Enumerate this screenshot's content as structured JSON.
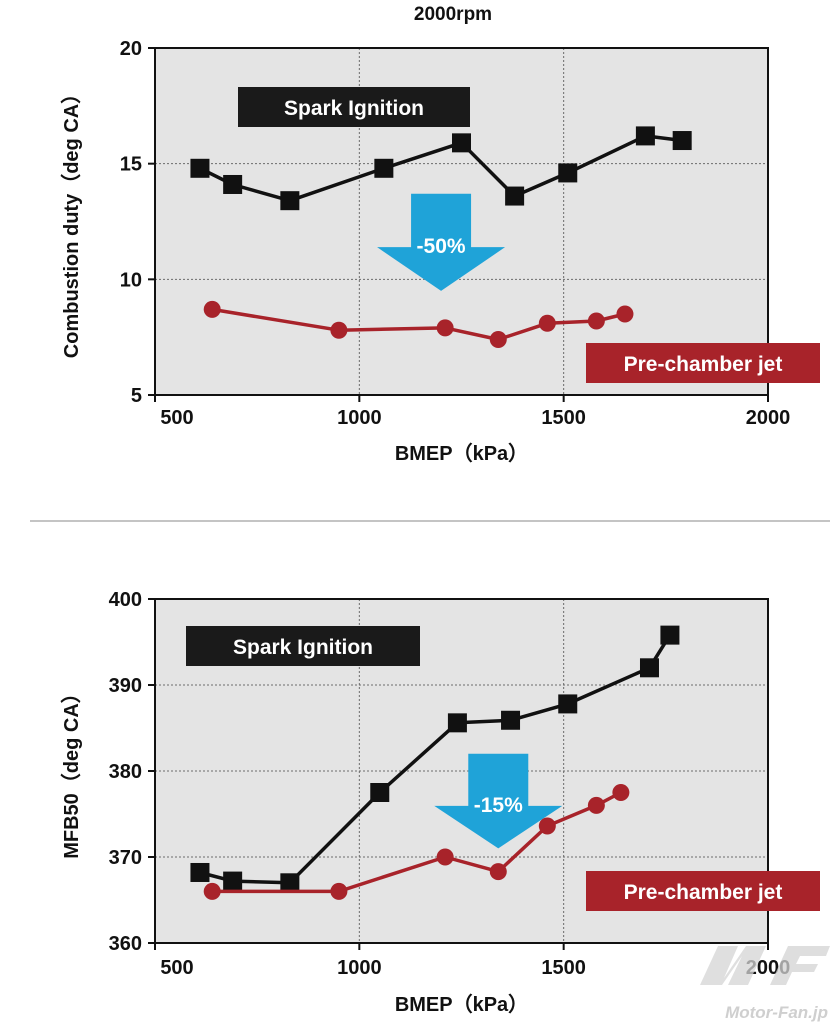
{
  "figure_title": "2000rpm",
  "watermark": {
    "logo": "MF",
    "text": "Motor-Fan.jp"
  },
  "colors": {
    "spark": "#111111",
    "prechamber": "#a8232a",
    "arrow": "#1fa3d8",
    "plot_bg": "#e4e4e4",
    "spark_box": "#1a1a1a",
    "pre_box": "#a8232a"
  },
  "chart_data": [
    {
      "type": "line",
      "title": "2000rpm",
      "xlabel": "BMEP（kPa）",
      "ylabel": "Combustion duty（deg CA）",
      "xlim": [
        500,
        2000
      ],
      "ylim": [
        5,
        20
      ],
      "xticks": [
        500,
        1000,
        1500,
        2000
      ],
      "yticks": [
        5,
        10,
        15,
        20
      ],
      "grid": true,
      "legend_box_spark": "Spark Ignition",
      "legend_box_pre": "Pre-chamber jet",
      "arrow": {
        "label": "-50%",
        "x": 1200,
        "y_top": 13.7,
        "y_tip": 9.5
      },
      "series": [
        {
          "name": "Spark Ignition",
          "marker": "square",
          "x": [
            610,
            690,
            830,
            1060,
            1250,
            1380,
            1510,
            1700,
            1790
          ],
          "y": [
            14.8,
            14.1,
            13.4,
            14.8,
            15.9,
            13.6,
            14.6,
            16.2,
            16.0
          ]
        },
        {
          "name": "Pre-chamber jet",
          "marker": "circle",
          "x": [
            640,
            950,
            1210,
            1340,
            1460,
            1580,
            1650
          ],
          "y": [
            8.7,
            7.8,
            7.9,
            7.4,
            8.1,
            8.2,
            8.5
          ]
        }
      ]
    },
    {
      "type": "line",
      "title": "",
      "xlabel": "BMEP（kPa）",
      "ylabel": "MFB50（deg CA）",
      "xlim": [
        500,
        2000
      ],
      "ylim": [
        360,
        400
      ],
      "xticks": [
        500,
        1000,
        1500,
        2000
      ],
      "yticks": [
        360,
        370,
        380,
        390,
        400
      ],
      "grid": true,
      "legend_box_spark": "Spark Ignition",
      "legend_box_pre": "Pre-chamber jet",
      "arrow": {
        "label": "-15%",
        "x": 1340,
        "y_top": 382,
        "y_tip": 371
      },
      "series": [
        {
          "name": "Spark Ignition",
          "marker": "square",
          "x": [
            610,
            690,
            830,
            1050,
            1240,
            1370,
            1510,
            1710,
            1760
          ],
          "y": [
            368.2,
            367.2,
            367.0,
            377.5,
            385.6,
            385.9,
            387.8,
            392.0,
            395.8
          ]
        },
        {
          "name": "Pre-chamber jet",
          "marker": "circle",
          "x": [
            640,
            950,
            1210,
            1340,
            1460,
            1580,
            1640
          ],
          "y": [
            366.0,
            366.0,
            370.0,
            368.3,
            373.6,
            376.0,
            377.5
          ]
        }
      ]
    }
  ]
}
